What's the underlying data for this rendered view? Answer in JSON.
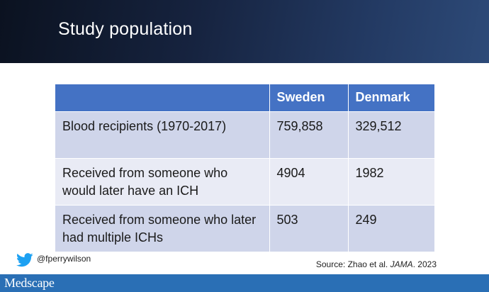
{
  "slide": {
    "title": "Study population"
  },
  "table": {
    "headers": [
      "",
      "Sweden",
      "Denmark"
    ],
    "rows": [
      [
        "Blood recipients (1970-2017)",
        "759,858",
        "329,512"
      ],
      [
        "Received from someone who would later have an ICH",
        "4904",
        "1982"
      ],
      [
        "Received from someone who later had multiple ICHs",
        "503",
        "249"
      ]
    ]
  },
  "footer": {
    "twitter_handle": "@fperrywilson",
    "source_prefix": "Source: Zhao et al. ",
    "source_journal": "JAMA",
    "source_suffix": ". 2023",
    "logo_text": "Medscape"
  },
  "colors": {
    "header_cell": "#4472c4",
    "row_dark": "#cfd5ea",
    "row_light": "#e9ebf5",
    "footer_bar": "#2a6fb5",
    "twitter_blue": "#1da1f2"
  },
  "icons": {
    "social": "twitter-bird-icon"
  }
}
